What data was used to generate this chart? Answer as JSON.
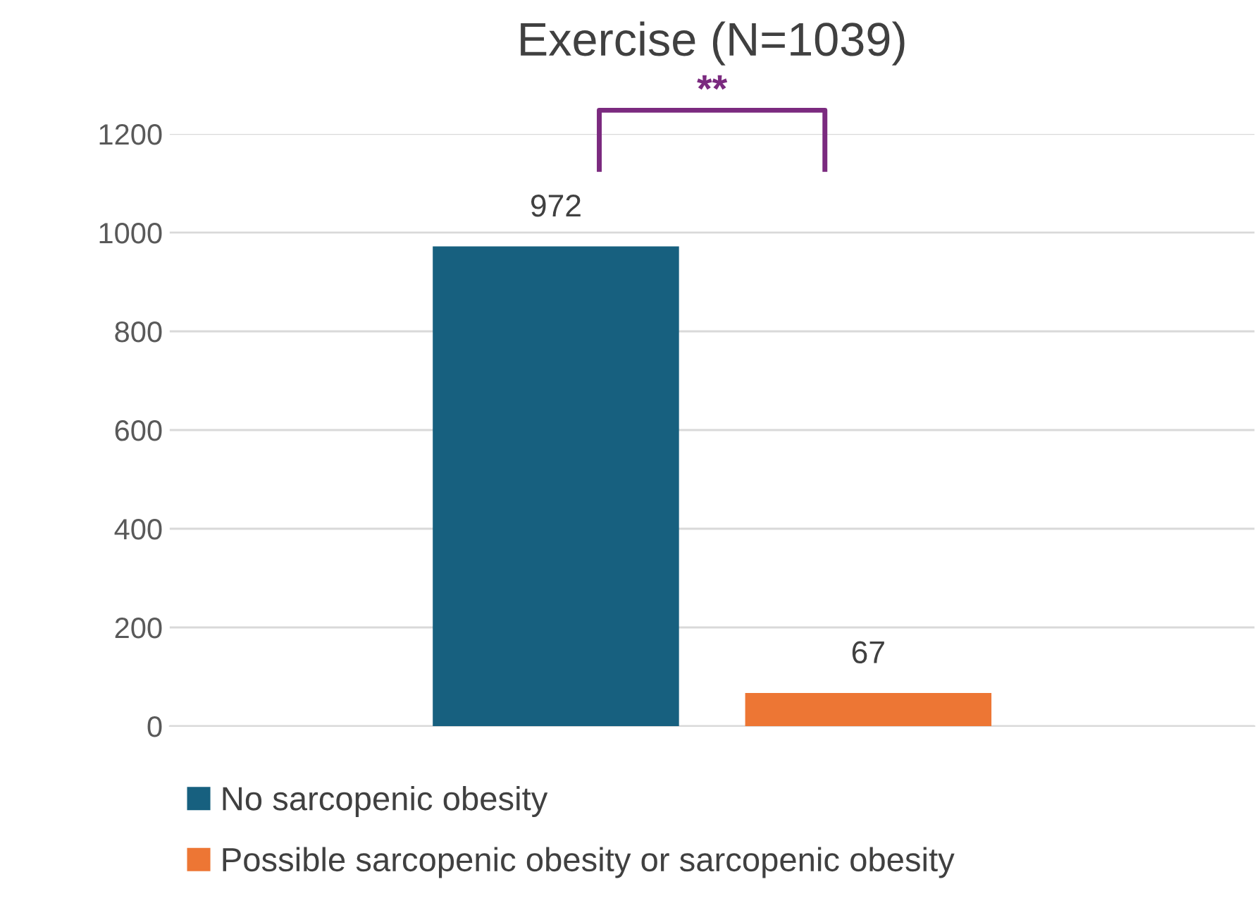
{
  "chart_data": {
    "type": "bar",
    "title": "Exercise (N=1039)",
    "categories": [
      null
    ],
    "series": [
      {
        "name": "No sarcopenic obesity",
        "color": "#17607f",
        "values": [
          972
        ]
      },
      {
        "name": "Possible sarcopenic obesity or sarcopenic obesity",
        "color": "#ed7634",
        "values": [
          67
        ]
      }
    ],
    "ylim": [
      0,
      1200
    ],
    "yticks": [
      0,
      200,
      400,
      600,
      800,
      1000,
      1200
    ],
    "grid": "y",
    "legend": "bottom",
    "data_labels": true,
    "annotations": [
      "**"
    ]
  }
}
